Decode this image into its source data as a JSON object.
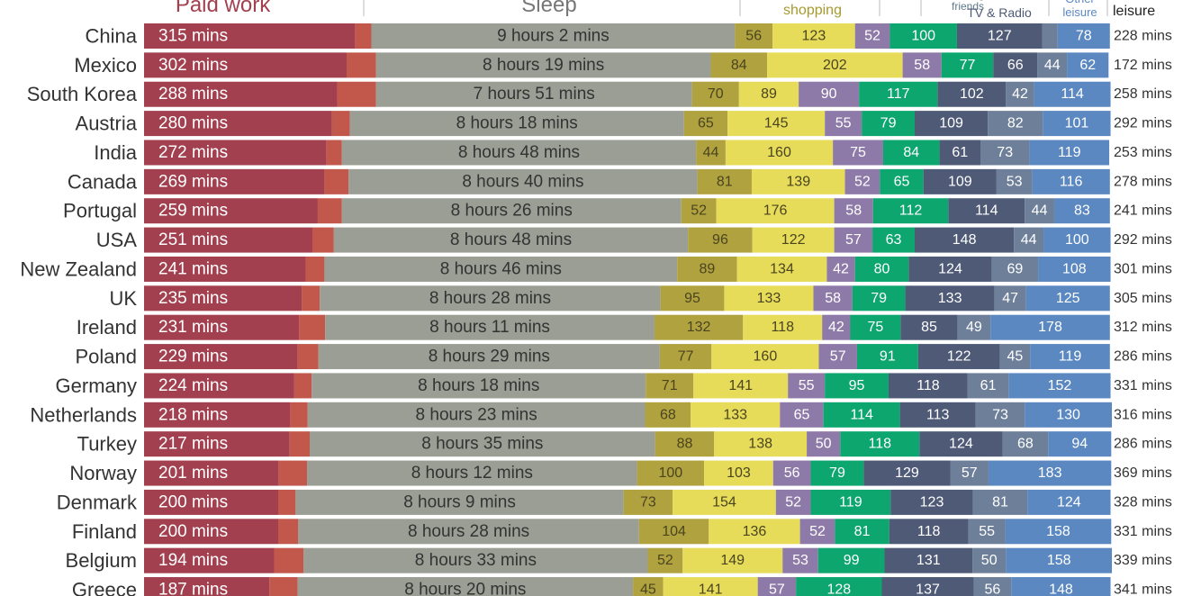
{
  "chart_data": {
    "type": "stacked_barh",
    "categories": [
      "China",
      "Mexico",
      "South Korea",
      "Austria",
      "India",
      "Canada",
      "Portugal",
      "USA",
      "New Zealand",
      "UK",
      "Ireland",
      "Poland",
      "Germany",
      "Netherlands",
      "Turkey",
      "Norway",
      "Denmark",
      "Finland",
      "Belgium",
      "Greece"
    ],
    "series": [
      {
        "name": "Paid work",
        "color": "#a2404f",
        "label_color": "#ffffff",
        "values": [
          315,
          302,
          288,
          280,
          272,
          269,
          259,
          251,
          241,
          235,
          231,
          229,
          224,
          218,
          217,
          201,
          200,
          200,
          194,
          187
        ],
        "value_labels": [
          "315 mins",
          "302 mins",
          "288 mins",
          "280 mins",
          "272 mins",
          "269 mins",
          "259 mins",
          "251 mins",
          "241 mins",
          "235 mins",
          "231 mins",
          "229 mins",
          "224 mins",
          "218 mins",
          "217 mins",
          "201 mins",
          "200 mins",
          "200 mins",
          "194 mins",
          "187 mins"
        ]
      },
      {
        "color": "#c2584b",
        "show_labels": false,
        "values": [
          24,
          44,
          58,
          27,
          23,
          36,
          36,
          32,
          28,
          27,
          39,
          31,
          26,
          26,
          30,
          42,
          26,
          30,
          44,
          42
        ]
      },
      {
        "name": "Sleep",
        "color": "#9a9e94",
        "label_color": "#333333",
        "values": [
          542,
          499,
          471,
          498,
          528,
          520,
          506,
          528,
          526,
          508,
          491,
          509,
          498,
          503,
          515,
          492,
          489,
          508,
          513,
          500
        ],
        "value_labels": [
          "9 hours 2 mins",
          "8 hours 19 mins",
          "7 hours 51 mins",
          "8 hours 18 mins",
          "8 hours 48 mins",
          "8 hours 40 mins",
          "8 hours 26 mins",
          "8 hours 48 mins",
          "8 hours 46 mins",
          "8 hours 28 mins",
          "8 hours 11 mins",
          "8 hours 29 mins",
          "8 hours 18 mins",
          "8 hours 23 mins",
          "8 hours 35 mins",
          "8 hours 12 mins",
          "8 hours 9 mins",
          "8 hours 28 mins",
          "8 hours 33 mins",
          "8 hours 20 mins"
        ]
      },
      {
        "color": "#b0a23e",
        "label_color": "#4a4420",
        "values": [
          56,
          84,
          70,
          65,
          44,
          81,
          52,
          96,
          89,
          95,
          132,
          77,
          71,
          68,
          88,
          100,
          73,
          104,
          52,
          45
        ]
      },
      {
        "name": "Housework & shopping",
        "color": "#e6dc5a",
        "label_color": "#4a4420",
        "values": [
          123,
          202,
          89,
          145,
          160,
          139,
          176,
          122,
          134,
          133,
          118,
          160,
          141,
          133,
          138,
          103,
          154,
          136,
          149,
          141
        ]
      },
      {
        "color": "#8e7aa8",
        "label_color": "#ffffff",
        "values": [
          52,
          58,
          90,
          55,
          75,
          52,
          58,
          57,
          42,
          58,
          42,
          57,
          55,
          65,
          50,
          56,
          52,
          52,
          53,
          57
        ]
      },
      {
        "name": "Seeing friends",
        "color": "#0ca66e",
        "label_color": "#ffffff",
        "values": [
          100,
          77,
          117,
          79,
          84,
          65,
          112,
          63,
          80,
          79,
          75,
          91,
          95,
          114,
          118,
          79,
          119,
          81,
          99,
          128
        ]
      },
      {
        "name": "TV & Radio",
        "color": "#4f5a77",
        "label_color": "#ffffff",
        "values": [
          127,
          66,
          102,
          109,
          61,
          109,
          114,
          148,
          124,
          133,
          85,
          122,
          118,
          113,
          124,
          129,
          123,
          118,
          131,
          137
        ]
      },
      {
        "color": "#6e7f99",
        "label_color": "#ffffff",
        "values": [
          23,
          44,
          42,
          82,
          73,
          53,
          44,
          44,
          69,
          47,
          49,
          45,
          61,
          73,
          68,
          57,
          81,
          55,
          50,
          56
        ]
      },
      {
        "name": "Other leisure",
        "color": "#5b88c1",
        "label_color": "#ffffff",
        "values": [
          78,
          62,
          114,
          101,
          119,
          116,
          83,
          100,
          108,
          125,
          178,
          119,
          152,
          130,
          94,
          183,
          124,
          158,
          158,
          148
        ]
      }
    ],
    "total": {
      "name": "Total leisure",
      "values": [
        228,
        172,
        258,
        292,
        253,
        278,
        241,
        292,
        301,
        305,
        312,
        286,
        331,
        316,
        286,
        369,
        328,
        331,
        339,
        341
      ],
      "value_labels": [
        "228 mins",
        "172 mins",
        "258 mins",
        "292 mins",
        "253 mins",
        "278 mins",
        "241 mins",
        "292 mins",
        "301 mins",
        "305 mins",
        "312 mins",
        "286 mins",
        "331 mins",
        "316 mins",
        "286 mins",
        "369 mins",
        "328 mins",
        "331 mins",
        "339 mins",
        "341 mins"
      ]
    }
  }
}
